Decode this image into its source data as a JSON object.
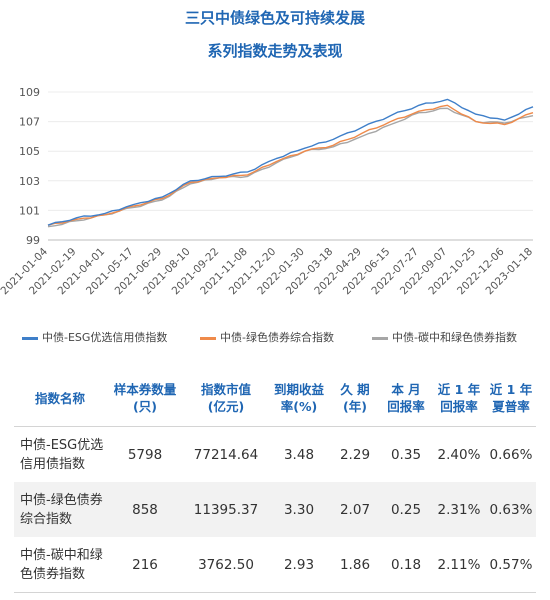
{
  "title_line1": "三只中债绿色及可持续发展",
  "title_line2": "系列指数走势及表现",
  "chart_data": {
    "type": "line",
    "ylim": [
      99,
      109
    ],
    "yticks": [
      99,
      101,
      103,
      105,
      107,
      109
    ],
    "xticks": [
      "2021-01-04",
      "2021-02-19",
      "2021-04-01",
      "2021-05-17",
      "2021-06-29",
      "2021-08-10",
      "2021-09-22",
      "2021-11-08",
      "2021-12-20",
      "2022-01-30",
      "2022-03-18",
      "2022-04-29",
      "2022-06-15",
      "2022-07-27",
      "2022-09-07",
      "2022-10-25",
      "2022-12-06",
      "2023-01-18"
    ],
    "legend_position": "bottom",
    "series": [
      {
        "name": "中债-ESG优选信用债指数",
        "color": "#3f7fc9",
        "values": [
          100.0,
          100.5,
          100.8,
          101.4,
          101.9,
          103.0,
          103.3,
          103.6,
          104.5,
          105.2,
          105.8,
          106.6,
          107.4,
          108.1,
          108.5,
          107.5,
          107.1,
          108.0
        ]
      },
      {
        "name": "中债-绿色债券综合指数",
        "color": "#ef8a4a",
        "values": [
          100.0,
          100.4,
          100.7,
          101.3,
          101.8,
          102.9,
          103.2,
          103.4,
          104.3,
          105.0,
          105.4,
          106.2,
          107.0,
          107.7,
          108.1,
          107.0,
          106.8,
          107.6
        ]
      },
      {
        "name": "中债-碳中和绿色债券指数",
        "color": "#a6a6a6",
        "values": [
          99.9,
          100.3,
          100.7,
          101.2,
          101.7,
          102.8,
          103.2,
          103.3,
          104.2,
          105.0,
          105.3,
          106.0,
          106.8,
          107.6,
          107.9,
          107.0,
          106.9,
          107.4
        ]
      }
    ]
  },
  "table": {
    "headers": [
      [
        "指数名称"
      ],
      [
        "样本券数量",
        "(只)"
      ],
      [
        "指数市值",
        "(亿元)"
      ],
      [
        "到期收益",
        "率(%)"
      ],
      [
        "久 期",
        "(年)"
      ],
      [
        "本 月",
        "回报率"
      ],
      [
        "近 1 年",
        "回报率"
      ],
      [
        "近 1 年",
        "夏普率"
      ]
    ],
    "rows": [
      {
        "name": [
          "中债-ESG优选",
          "信用债指数"
        ],
        "cells": [
          "5798",
          "77214.64",
          "3.48",
          "2.29",
          "0.35",
          "2.40%",
          "0.66%"
        ]
      },
      {
        "name": [
          "中债-绿色债券",
          "综合指数"
        ],
        "cells": [
          "858",
          "11395.37",
          "3.30",
          "2.07",
          "0.25",
          "2.31%",
          "0.63%"
        ]
      },
      {
        "name": [
          "中债-碳中和绿",
          "色债券指数"
        ],
        "cells": [
          "216",
          "3762.50",
          "2.93",
          "1.86",
          "0.18",
          "2.11%",
          "0.57%"
        ]
      }
    ]
  }
}
